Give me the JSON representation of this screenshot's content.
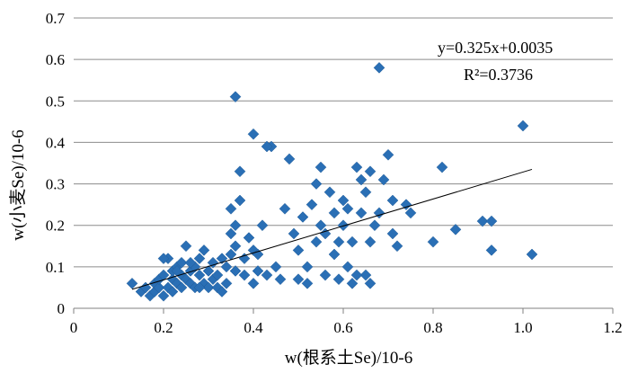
{
  "chart_data": {
    "type": "scatter",
    "title": "",
    "xlabel": "w(根系土Se)/10-6",
    "ylabel": "w(小麦Se)/10-6",
    "xlim": [
      0,
      1.2
    ],
    "ylim": [
      0,
      0.7
    ],
    "x_ticks": [
      "0",
      "0.2",
      "0.4",
      "0.6",
      "0.8",
      "1.0",
      "1.2"
    ],
    "y_ticks": [
      "0",
      "0.1",
      "0.2",
      "0.3",
      "0.4",
      "0.5",
      "0.6",
      "0.7"
    ],
    "grid": "horizontal",
    "marker": "diamond",
    "marker_color": "#2a6fb5",
    "trendline": {
      "slope": 0.325,
      "intercept": 0.0035,
      "x_range": [
        0.13,
        1.02
      ],
      "equation": "y=0.325x+0.0035",
      "r2_label": "R²=0.3736"
    },
    "points": [
      [
        0.13,
        0.06
      ],
      [
        0.15,
        0.04
      ],
      [
        0.16,
        0.05
      ],
      [
        0.17,
        0.03
      ],
      [
        0.18,
        0.04
      ],
      [
        0.18,
        0.06
      ],
      [
        0.19,
        0.05
      ],
      [
        0.19,
        0.07
      ],
      [
        0.2,
        0.03
      ],
      [
        0.2,
        0.08
      ],
      [
        0.21,
        0.05
      ],
      [
        0.21,
        0.12
      ],
      [
        0.22,
        0.04
      ],
      [
        0.22,
        0.07
      ],
      [
        0.22,
        0.09
      ],
      [
        0.23,
        0.06
      ],
      [
        0.23,
        0.1
      ],
      [
        0.24,
        0.05
      ],
      [
        0.24,
        0.08
      ],
      [
        0.24,
        0.11
      ],
      [
        0.25,
        0.07
      ],
      [
        0.25,
        0.15
      ],
      [
        0.26,
        0.06
      ],
      [
        0.26,
        0.09
      ],
      [
        0.27,
        0.05
      ],
      [
        0.27,
        0.1
      ],
      [
        0.28,
        0.08
      ],
      [
        0.28,
        0.12
      ],
      [
        0.29,
        0.06
      ],
      [
        0.29,
        0.14
      ],
      [
        0.3,
        0.05
      ],
      [
        0.3,
        0.09
      ],
      [
        0.31,
        0.07
      ],
      [
        0.31,
        0.11
      ],
      [
        0.32,
        0.05
      ],
      [
        0.32,
        0.08
      ],
      [
        0.33,
        0.12
      ],
      [
        0.34,
        0.06
      ],
      [
        0.34,
        0.1
      ],
      [
        0.35,
        0.13
      ],
      [
        0.35,
        0.18
      ],
      [
        0.35,
        0.24
      ],
      [
        0.36,
        0.15
      ],
      [
        0.36,
        0.2
      ],
      [
        0.37,
        0.26
      ],
      [
        0.37,
        0.33
      ],
      [
        0.38,
        0.08
      ],
      [
        0.38,
        0.12
      ],
      [
        0.39,
        0.17
      ],
      [
        0.4,
        0.06
      ],
      [
        0.4,
        0.14
      ],
      [
        0.41,
        0.09
      ],
      [
        0.41,
        0.13
      ],
      [
        0.42,
        0.2
      ],
      [
        0.43,
        0.08
      ],
      [
        0.44,
        0.39
      ],
      [
        0.45,
        0.1
      ],
      [
        0.46,
        0.07
      ],
      [
        0.47,
        0.24
      ],
      [
        0.48,
        0.36
      ],
      [
        0.49,
        0.18
      ],
      [
        0.5,
        0.07
      ],
      [
        0.5,
        0.14
      ],
      [
        0.51,
        0.22
      ],
      [
        0.52,
        0.1
      ],
      [
        0.53,
        0.25
      ],
      [
        0.54,
        0.16
      ],
      [
        0.54,
        0.3
      ],
      [
        0.55,
        0.2
      ],
      [
        0.55,
        0.34
      ],
      [
        0.56,
        0.08
      ],
      [
        0.56,
        0.18
      ],
      [
        0.57,
        0.28
      ],
      [
        0.58,
        0.13
      ],
      [
        0.58,
        0.23
      ],
      [
        0.59,
        0.16
      ],
      [
        0.6,
        0.2
      ],
      [
        0.6,
        0.26
      ],
      [
        0.61,
        0.1
      ],
      [
        0.61,
        0.24
      ],
      [
        0.62,
        0.06
      ],
      [
        0.62,
        0.16
      ],
      [
        0.63,
        0.34
      ],
      [
        0.64,
        0.23
      ],
      [
        0.64,
        0.31
      ],
      [
        0.65,
        0.08
      ],
      [
        0.65,
        0.28
      ],
      [
        0.66,
        0.16
      ],
      [
        0.66,
        0.33
      ],
      [
        0.67,
        0.2
      ],
      [
        0.68,
        0.58
      ],
      [
        0.68,
        0.23
      ],
      [
        0.69,
        0.31
      ],
      [
        0.7,
        0.37
      ],
      [
        0.71,
        0.18
      ],
      [
        0.71,
        0.26
      ],
      [
        0.72,
        0.15
      ],
      [
        0.74,
        0.25
      ],
      [
        0.75,
        0.23
      ],
      [
        0.8,
        0.16
      ],
      [
        0.82,
        0.34
      ],
      [
        0.85,
        0.19
      ],
      [
        0.91,
        0.21
      ],
      [
        0.93,
        0.21
      ],
      [
        0.93,
        0.14
      ],
      [
        1.0,
        0.44
      ],
      [
        1.02,
        0.13
      ],
      [
        0.2,
        0.12
      ],
      [
        0.23,
        0.09
      ],
      [
        0.26,
        0.11
      ],
      [
        0.28,
        0.05
      ],
      [
        0.33,
        0.04
      ],
      [
        0.36,
        0.51
      ],
      [
        0.36,
        0.09
      ],
      [
        0.4,
        0.42
      ],
      [
        0.43,
        0.39
      ],
      [
        0.52,
        0.06
      ],
      [
        0.59,
        0.07
      ],
      [
        0.63,
        0.08
      ],
      [
        0.66,
        0.06
      ]
    ]
  }
}
